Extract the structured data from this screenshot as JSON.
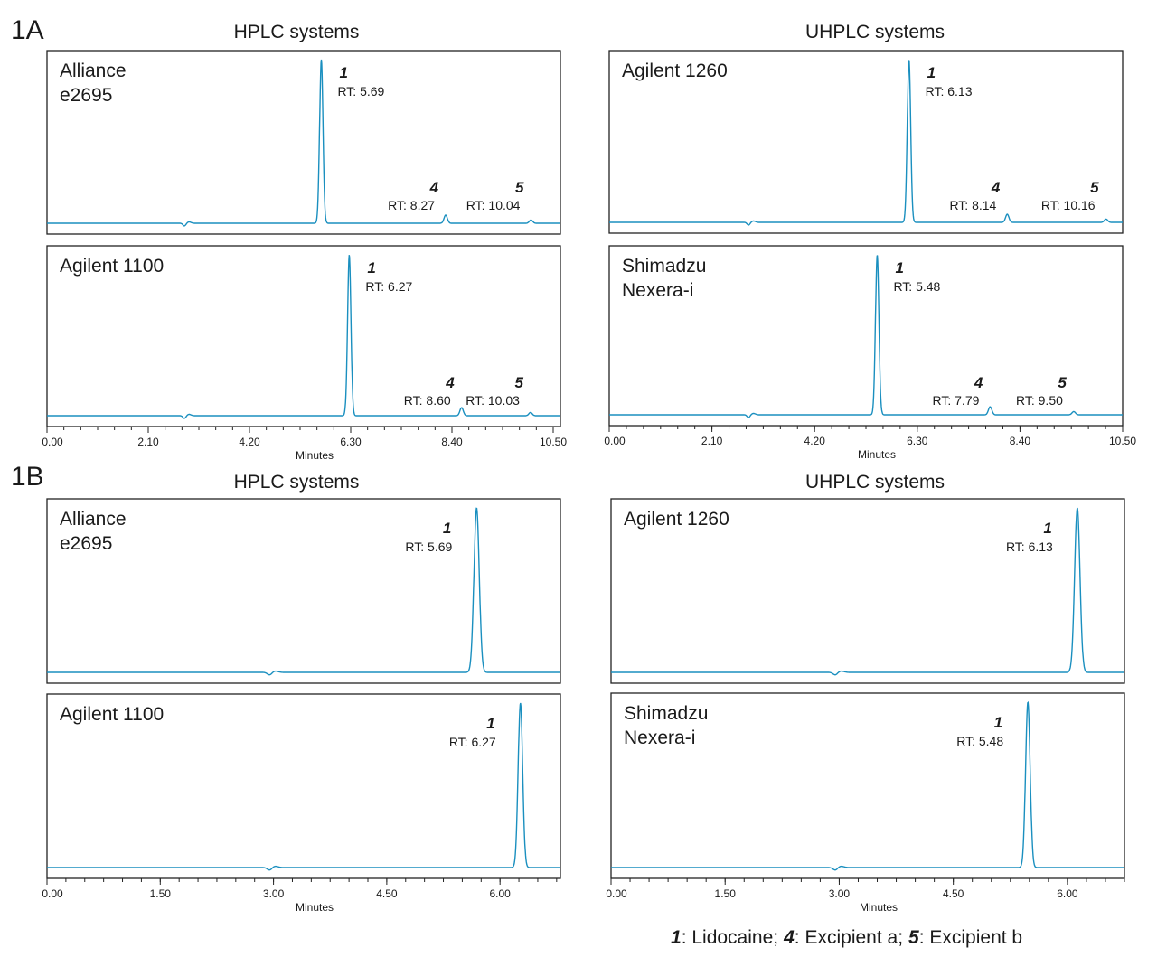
{
  "figures": [
    {
      "label": "1A",
      "left_title": "HPLC systems",
      "right_title": "UHPLC systems"
    },
    {
      "label": "1B",
      "left_title": "HPLC systems",
      "right_title": "UHPLC systems"
    }
  ],
  "legend": [
    {
      "num": "1",
      "text": ": Lidocaine;"
    },
    {
      "num": "4",
      "text": ": Excipient a;"
    },
    {
      "num": "5",
      "text": ": Excipient b"
    }
  ],
  "trace_color": "#1a8fbf",
  "chart_data": [
    {
      "type": "line",
      "figure": "1A",
      "group": "HPLC systems",
      "instrument": [
        "Alliance",
        "e2695"
      ],
      "xlabel": "Minutes",
      "xlim": [
        0,
        10.65
      ],
      "xticks": [],
      "peaks": [
        {
          "id": "1",
          "rt": 5.69,
          "label": "RT: 5.69",
          "rel_height": 1.0
        },
        {
          "id": "4",
          "rt": 8.27,
          "label": "RT: 8.27",
          "rel_height": 0.05
        },
        {
          "id": "5",
          "rt": 10.04,
          "label": "RT: 10.04",
          "rel_height": 0.02
        }
      ]
    },
    {
      "type": "line",
      "figure": "1A",
      "group": "HPLC systems",
      "instrument": [
        "Agilent 1100"
      ],
      "xlabel": "Minutes",
      "xlim": [
        0,
        10.65
      ],
      "xticks": [
        "0.00",
        "2.10",
        "4.20",
        "6.30",
        "8.40",
        "10.50"
      ],
      "peaks": [
        {
          "id": "1",
          "rt": 6.27,
          "label": "RT: 6.27",
          "rel_height": 1.0
        },
        {
          "id": "4",
          "rt": 8.6,
          "label": "RT: 8.60",
          "rel_height": 0.05
        },
        {
          "id": "5",
          "rt": 10.03,
          "label": "RT: 10.03",
          "rel_height": 0.02
        }
      ]
    },
    {
      "type": "line",
      "figure": "1A",
      "group": "UHPLC systems",
      "instrument": [
        "Agilent 1260"
      ],
      "xlabel": "Minutes",
      "xlim": [
        0,
        10.5
      ],
      "xticks": [],
      "peaks": [
        {
          "id": "1",
          "rt": 6.13,
          "label": "RT: 6.13",
          "rel_height": 1.0
        },
        {
          "id": "4",
          "rt": 8.14,
          "label": "RT: 8.14",
          "rel_height": 0.05
        },
        {
          "id": "5",
          "rt": 10.16,
          "label": "RT: 10.16",
          "rel_height": 0.02
        }
      ]
    },
    {
      "type": "line",
      "figure": "1A",
      "group": "UHPLC systems",
      "instrument": [
        "Shimadzu",
        "Nexera-i"
      ],
      "xlabel": "Minutes",
      "xlim": [
        0,
        10.5
      ],
      "xticks": [
        "0.00",
        "2.10",
        "4.20",
        "6.30",
        "8.40",
        "10.50"
      ],
      "peaks": [
        {
          "id": "1",
          "rt": 5.48,
          "label": "RT: 5.48",
          "rel_height": 1.0
        },
        {
          "id": "4",
          "rt": 7.79,
          "label": "RT: 7.79",
          "rel_height": 0.05
        },
        {
          "id": "5",
          "rt": 9.5,
          "label": "RT: 9.50",
          "rel_height": 0.02
        }
      ]
    },
    {
      "type": "line",
      "figure": "1B",
      "group": "HPLC systems",
      "instrument": [
        "Alliance",
        "e2695"
      ],
      "xlabel": "Minutes",
      "xlim": [
        0,
        6.8
      ],
      "xticks": [],
      "peaks": [
        {
          "id": "1",
          "rt": 5.69,
          "label": "RT: 5.69",
          "rel_height": 1.0
        }
      ]
    },
    {
      "type": "line",
      "figure": "1B",
      "group": "HPLC systems",
      "instrument": [
        "Agilent 1100"
      ],
      "xlabel": "Minutes",
      "xlim": [
        0,
        6.8
      ],
      "xticks": [
        "0.00",
        "1.50",
        "3.00",
        "4.50",
        "6.00"
      ],
      "peaks": [
        {
          "id": "1",
          "rt": 6.27,
          "label": "RT: 6.27",
          "rel_height": 1.0
        }
      ]
    },
    {
      "type": "line",
      "figure": "1B",
      "group": "UHPLC systems",
      "instrument": [
        "Agilent 1260"
      ],
      "xlabel": "Minutes",
      "xlim": [
        0,
        6.75
      ],
      "xticks": [],
      "peaks": [
        {
          "id": "1",
          "rt": 6.13,
          "label": "RT: 6.13",
          "rel_height": 1.0
        }
      ]
    },
    {
      "type": "line",
      "figure": "1B",
      "group": "UHPLC systems",
      "instrument": [
        "Shimadzu",
        "Nexera-i"
      ],
      "xlabel": "Minutes",
      "xlim": [
        0,
        6.75
      ],
      "xticks": [
        "0.00",
        "1.50",
        "3.00",
        "4.50",
        "6.00"
      ],
      "peaks": [
        {
          "id": "1",
          "rt": 5.48,
          "label": "RT: 5.48",
          "rel_height": 1.0
        }
      ]
    }
  ]
}
